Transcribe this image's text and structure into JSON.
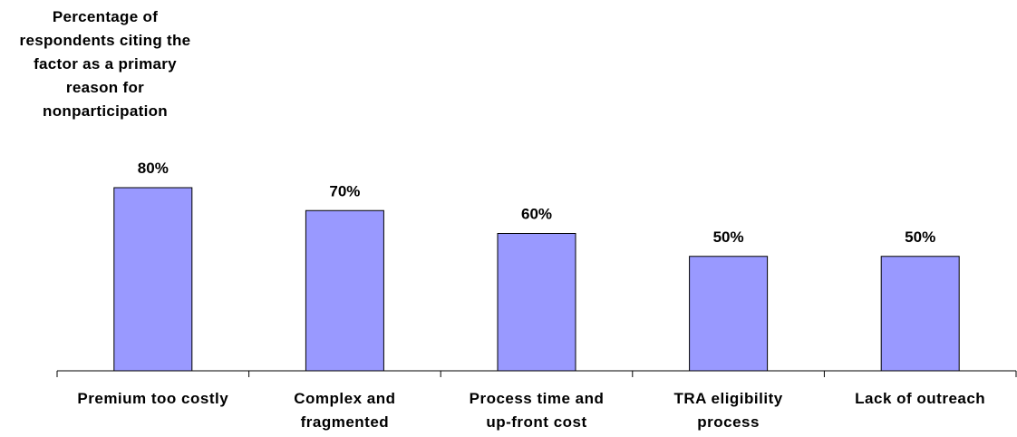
{
  "chart_data": {
    "type": "bar",
    "title": "Percentage of respondents citing the factor as a primary reason for nonparticipation",
    "categories": [
      "Premium too costly",
      "Complex and fragmented",
      "Process time and up-front cost",
      "TRA eligibility process",
      "Lack of outreach"
    ],
    "values": [
      80,
      70,
      60,
      50,
      50
    ],
    "value_labels": [
      "80%",
      "70%",
      "60%",
      "50%",
      "50%"
    ],
    "color": "#9999ff"
  }
}
